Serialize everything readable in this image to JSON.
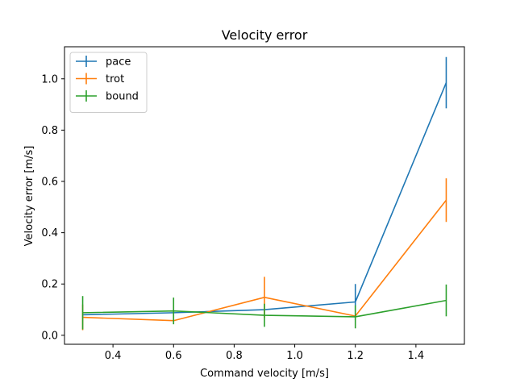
{
  "chart_data": {
    "type": "line",
    "title": "Velocity error",
    "xlabel": "Command velocity [m/s]",
    "ylabel": "Velocity error [m/s]",
    "xlim": [
      0.24,
      1.56
    ],
    "ylim": [
      -0.035,
      1.125
    ],
    "x_ticks": [
      0.4,
      0.6,
      0.8,
      1.0,
      1.2,
      1.4
    ],
    "y_ticks": [
      0.0,
      0.2,
      0.4,
      0.6,
      0.8,
      1.0
    ],
    "x_tick_labels": [
      "0.4",
      "0.6",
      "0.8",
      "1.0",
      "1.2",
      "1.4"
    ],
    "y_tick_labels": [
      "0.0",
      "0.2",
      "0.4",
      "0.6",
      "0.8",
      "1.0"
    ],
    "grid": false,
    "legend_position": "top-left",
    "x": [
      0.3,
      0.6,
      0.9,
      1.2,
      1.5
    ],
    "series": [
      {
        "name": "pace",
        "color": "#1f77b4",
        "values": [
          0.08,
          0.088,
          0.1,
          0.13,
          0.985
        ],
        "errors": [
          0.0,
          0.0,
          0.0,
          0.07,
          0.1
        ]
      },
      {
        "name": "trot",
        "color": "#ff7f0e",
        "values": [
          0.07,
          0.057,
          0.148,
          0.075,
          0.527
        ],
        "errors": [
          0.05,
          0.0,
          0.08,
          0.0,
          0.085
        ]
      },
      {
        "name": "bound",
        "color": "#2ca02c",
        "values": [
          0.088,
          0.095,
          0.078,
          0.072,
          0.136
        ],
        "errors": [
          0.065,
          0.052,
          0.045,
          0.045,
          0.062
        ]
      }
    ]
  }
}
